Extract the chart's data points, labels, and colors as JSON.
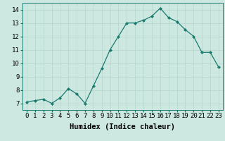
{
  "x": [
    0,
    1,
    2,
    3,
    4,
    5,
    6,
    7,
    8,
    9,
    10,
    11,
    12,
    13,
    14,
    15,
    16,
    17,
    18,
    19,
    20,
    21,
    22,
    23
  ],
  "y": [
    7.1,
    7.2,
    7.3,
    7.0,
    7.4,
    8.1,
    7.7,
    7.0,
    8.3,
    9.6,
    11.0,
    12.0,
    13.0,
    13.0,
    13.2,
    13.5,
    14.1,
    13.4,
    13.1,
    12.5,
    12.0,
    10.8,
    10.8,
    9.7
  ],
  "line_color": "#1a7a6e",
  "marker": "D",
  "marker_size": 2.0,
  "bg_color": "#cce8e0",
  "grid_color": "#b8d8d0",
  "xlabel": "Humidex (Indice chaleur)",
  "xlim": [
    -0.5,
    23.5
  ],
  "ylim": [
    6.5,
    14.5
  ],
  "yticks": [
    7,
    8,
    9,
    10,
    11,
    12,
    13,
    14
  ],
  "xticks": [
    0,
    1,
    2,
    3,
    4,
    5,
    6,
    7,
    8,
    9,
    10,
    11,
    12,
    13,
    14,
    15,
    16,
    17,
    18,
    19,
    20,
    21,
    22,
    23
  ],
  "tick_fontsize": 6.5,
  "xlabel_fontsize": 7.5,
  "line_width": 0.9
}
